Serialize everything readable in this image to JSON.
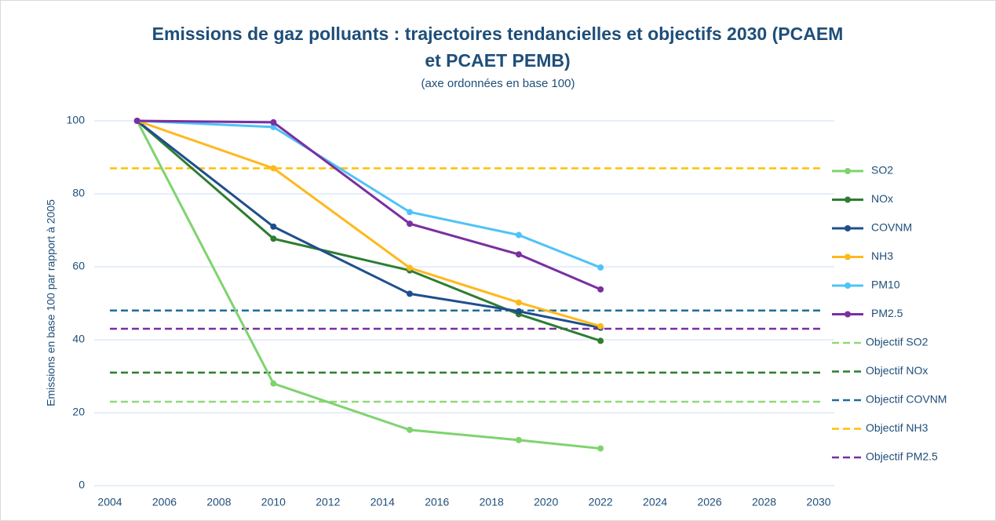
{
  "chart_data": {
    "type": "line",
    "title": "Emissions de gaz polluants : trajectoires tendancielles et objectifs 2030 (PCAEM et PCAET PEMB)",
    "subtitle": "(axe ordonnées en base 100)",
    "y_label": "Emissions en base 100 par rapport à 2005",
    "x": [
      2005,
      2010,
      2015,
      2019,
      2022
    ],
    "series": [
      {
        "name": "SO2",
        "color": "#7fd36f",
        "values": [
          100,
          28,
          15.3,
          12.5,
          10.2
        ]
      },
      {
        "name": "NOx",
        "color": "#2e7d32",
        "values": [
          100,
          67.7,
          59,
          47,
          39.7
        ]
      },
      {
        "name": "COVNM",
        "color": "#1f4e8c",
        "values": [
          100,
          71,
          52.6,
          47.8,
          43.3
        ]
      },
      {
        "name": "NH3",
        "color": "#ffb81c",
        "values": [
          100,
          87,
          59.7,
          50.2,
          43.7
        ]
      },
      {
        "name": "PM10",
        "color": "#4fc3f7",
        "values": [
          100,
          98.3,
          75,
          68.7,
          59.8
        ]
      },
      {
        "name": "PM2.5",
        "color": "#7b2fa0",
        "values": [
          100,
          99.6,
          71.8,
          63.4,
          53.8
        ]
      }
    ],
    "targets": [
      {
        "name": "Objectif SO2",
        "color": "#8fd97a",
        "value": 23
      },
      {
        "name": "Objectif NOx",
        "color": "#2f7d2f",
        "value": 31
      },
      {
        "name": "Objectif COVNM",
        "color": "#1f6e98",
        "value": 48
      },
      {
        "name": "Objectif NH3",
        "color": "#ffc000",
        "value": 87
      },
      {
        "name": "Objectif PM2.5",
        "color": "#7b2fa0",
        "value": 43
      }
    ],
    "xlim": [
      2004,
      2030
    ],
    "xticks": [
      2004,
      2006,
      2008,
      2010,
      2012,
      2014,
      2016,
      2018,
      2020,
      2022,
      2024,
      2026,
      2028,
      2030
    ],
    "ylim": [
      0,
      100
    ],
    "yticks": [
      0,
      20,
      40,
      60,
      80,
      100
    ],
    "grid": true,
    "legend": "right"
  }
}
